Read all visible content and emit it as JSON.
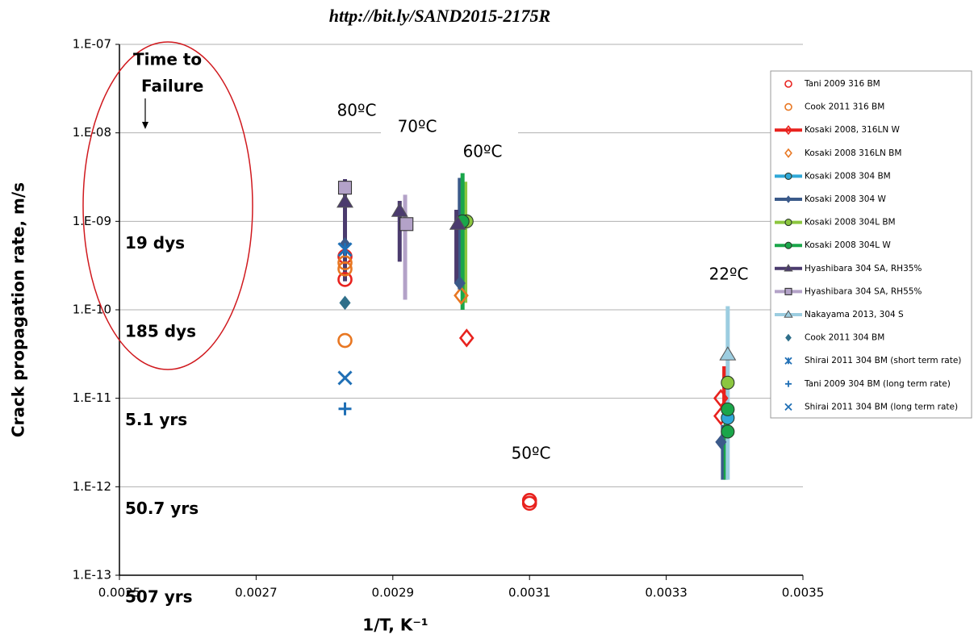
{
  "chart_data": {
    "type": "scatter",
    "title": "http://bit.ly/SAND2015-2175R",
    "ylabel": "Crack propagation rate, m/s",
    "xlabel": "1/T, K⁻¹",
    "log_y": true,
    "grid": true,
    "legend": "upper right",
    "xlim": [
      0.0025,
      0.0035
    ],
    "xticks": [
      0.0025,
      0.0027,
      0.0029,
      0.0031,
      0.0033,
      0.0035
    ],
    "ylim": [
      1e-13,
      1e-07
    ],
    "yticks": [
      {
        "value": 1e-13,
        "label": "1.E-13"
      },
      {
        "value": 1e-12,
        "label": "1.E-12"
      },
      {
        "value": 1e-11,
        "label": "1.E-11"
      },
      {
        "value": 1e-10,
        "label": "1.E-10"
      },
      {
        "value": 1e-09,
        "label": "1.E-09"
      },
      {
        "value": 1e-08,
        "label": "1.E-08"
      },
      {
        "value": 1e-07,
        "label": "1.E-07"
      }
    ],
    "annotations": {
      "time_to_failure_title": [
        "Time to",
        "Failure"
      ],
      "failure_times": [
        "507 yrs",
        "50.7 yrs",
        "5.1 yrs",
        "185 dys",
        "19 dys"
      ],
      "temperatures": [
        "80ºC",
        "70ºC",
        "60ºC",
        "50ºC",
        "22ºC"
      ]
    },
    "series": [
      {
        "name": "Tani 2009 316 BM",
        "color": "#e8221e",
        "marker": "circle-open",
        "line": false,
        "x": [
          0.00283,
          0.00283,
          0.0031,
          0.0031
        ],
        "y": [
          4e-10,
          2.2e-10,
          7e-13,
          6.5e-13
        ]
      },
      {
        "name": "Cook 2011 316 BM",
        "color": "#e87722",
        "marker": "circle-open",
        "line": false,
        "x": [
          0.00283,
          0.00283,
          0.00283
        ],
        "y": [
          3.4e-10,
          2.9e-10,
          4.5e-11
        ]
      },
      {
        "name": "Kosaki 2008, 316LN W",
        "color": "#e8221e",
        "marker": "diamond-open",
        "line": true,
        "x": [
          0.003008,
          0.00338,
          0.00338
        ],
        "y": [
          4.8e-11,
          1e-11,
          6.3e-12
        ],
        "ranges": [
          [
            0.003385,
            5.8e-12,
            2.3e-11
          ]
        ]
      },
      {
        "name": "Kosaki 2008 316LN BM",
        "color": "#e87722",
        "marker": "diamond-open",
        "line": false,
        "x": [
          0.003
        ],
        "y": [
          1.45e-10
        ]
      },
      {
        "name": "Kosaki 2008 304 BM",
        "color": "#2fa8d8",
        "marker": "circle",
        "line": true,
        "x": [
          0.00339
        ],
        "y": [
          6e-12
        ]
      },
      {
        "name": "Kosaki 2008 304 W",
        "color": "#3b5a8a",
        "marker": "diamond",
        "line": true,
        "x": [
          0.00283,
          0.002998,
          0.00338
        ],
        "y": [
          5.5e-10,
          2e-10,
          3.2e-12
        ],
        "ranges": [
          [
            0.002998,
            1.7e-10,
            3.1e-09
          ],
          [
            0.003383,
            1.2e-12,
            5e-12
          ]
        ]
      },
      {
        "name": "Kosaki 2008 304L BM",
        "color": "#8cc63f",
        "marker": "circle",
        "line": true,
        "x": [
          0.003008,
          0.00339
        ],
        "y": [
          1e-09,
          1.5e-11
        ],
        "ranges": [
          [
            0.003006,
            1.2e-10,
            2.8e-09
          ]
        ]
      },
      {
        "name": "Kosaki 2008 304L W",
        "color": "#1aa64a",
        "marker": "circle",
        "line": true,
        "x": [
          0.003002,
          0.00339,
          0.00339
        ],
        "y": [
          1e-09,
          7.5e-12,
          4.2e-12
        ],
        "ranges": [
          [
            0.003002,
            1e-10,
            3.5e-09
          ],
          [
            0.003387,
            1.2e-12,
            8e-12
          ]
        ]
      },
      {
        "name": "Hyashibara 304 SA, RH35%",
        "color": "#4b3b6e",
        "marker": "triangle",
        "line": true,
        "x": [
          0.00283,
          0.00291,
          0.002995
        ],
        "y": [
          1.65e-09,
          1.3e-09,
          9.3e-10
        ],
        "ranges": [
          [
            0.00283,
            2.1e-10,
            3e-09
          ],
          [
            0.00291,
            3.5e-10,
            1.7e-09
          ],
          [
            0.002993,
            2e-10,
            1.35e-09
          ]
        ]
      },
      {
        "name": "Hyashibara 304 SA, RH55%",
        "color": "#b3a2c8",
        "marker": "square",
        "line": true,
        "x": [
          0.00283,
          0.00292
        ],
        "y": [
          2.4e-09,
          9.3e-10
        ],
        "ranges": [
          [
            0.002918,
            1.3e-10,
            2e-09
          ]
        ]
      },
      {
        "name": "Nakayama 2013, 304 S",
        "color": "#9ccde0",
        "marker": "triangle",
        "line": true,
        "x": [
          0.00339
        ],
        "y": [
          3.1e-11
        ],
        "ranges": [
          [
            0.00339,
            1.2e-12,
            1.1e-10
          ]
        ]
      },
      {
        "name": "Cook 2011 304 BM",
        "color": "#2f6f8a",
        "marker": "diamond",
        "line": false,
        "x": [
          0.00283
        ],
        "y": [
          1.2e-10
        ]
      },
      {
        "name": "Shirai 2011 304 BM (short term rate)",
        "color": "#1f6fb5",
        "marker": "asterisk",
        "line": false,
        "x": [
          0.00283
        ],
        "y": [
          4.8e-10
        ]
      },
      {
        "name": "Tani 2009 304 BM (long term rate)",
        "color": "#1f6fb5",
        "marker": "plus",
        "line": false,
        "x": [
          0.00283
        ],
        "y": [
          7.6e-12
        ]
      },
      {
        "name": "Shirai 2011 304 BM (long term rate)",
        "color": "#1f6fb5",
        "marker": "x",
        "line": false,
        "x": [
          0.00283
        ],
        "y": [
          1.7e-11
        ]
      }
    ]
  }
}
